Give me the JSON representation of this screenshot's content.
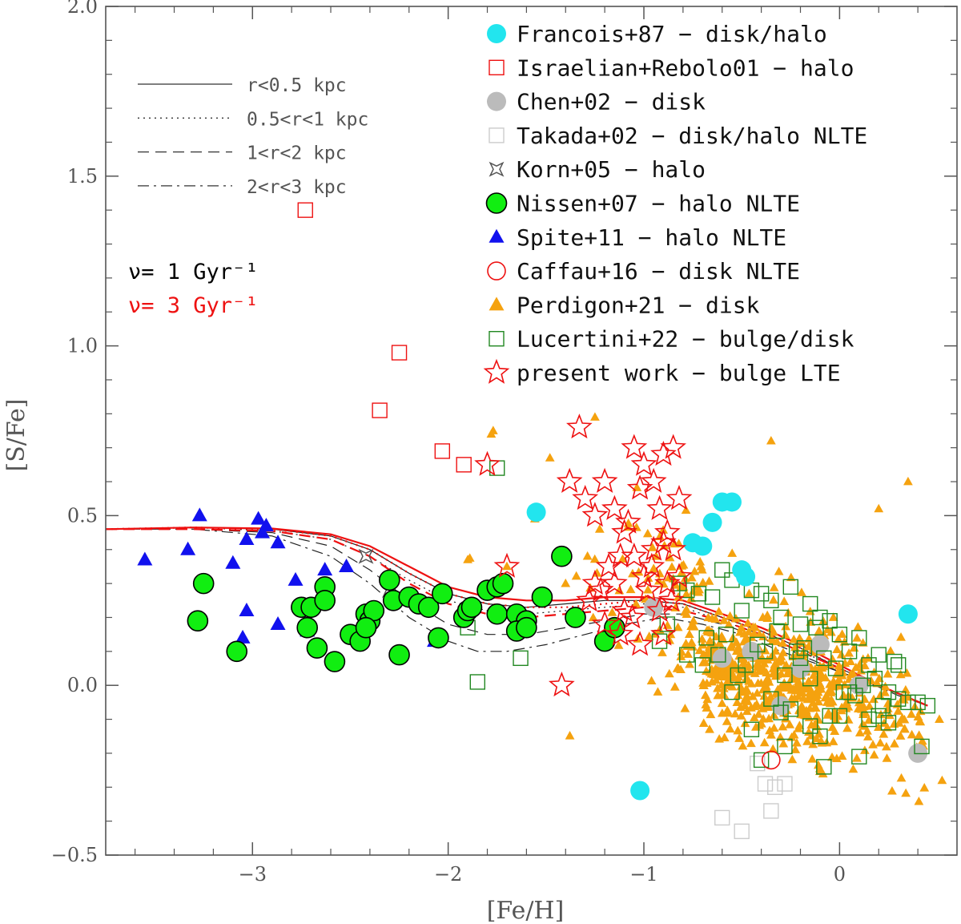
{
  "chart_data": {
    "type": "scatter",
    "title": "",
    "xlabel": "[Fe/H]",
    "ylabel": "[S/Fe]",
    "xlim": [
      -3.75,
      0.6
    ],
    "ylim": [
      -0.5,
      2.0
    ],
    "xticks": [
      -3,
      -2,
      -1,
      0
    ],
    "xtick_labels": [
      "−3",
      "−2",
      "−1",
      "0"
    ],
    "yticks": [
      -0.5,
      0.0,
      0.5,
      1.0,
      1.5,
      2.0
    ],
    "ytick_labels": [
      "−0.5",
      "0.0",
      "0.5",
      "1.0",
      "1.5",
      "2.0"
    ],
    "line_style_legend": [
      {
        "label": "r<0.5 kpc",
        "dash": "solid"
      },
      {
        "label": "0.5<r<1 kpc",
        "dash": "dotted"
      },
      {
        "label": "1<r<2 kpc",
        "dash": "dashed"
      },
      {
        "label": "2<r<3 kpc",
        "dash": "dashdot"
      }
    ],
    "nu_labels": [
      {
        "text": "ν= 1 Gyr⁻¹",
        "color": "#000000"
      },
      {
        "text": "ν= 3 Gyr⁻¹",
        "color": "#ee1111"
      }
    ],
    "legend_position": "top-right",
    "series": [
      {
        "name": "Francois+87 − disk/halo",
        "marker": "circle-filled",
        "color": "#22e5ee",
        "x": [
          -1.55,
          -0.65,
          -0.6,
          -0.55,
          -0.5,
          -0.48,
          -0.75,
          -0.7,
          0.35,
          -1.02
        ],
        "y": [
          0.51,
          0.48,
          0.54,
          0.54,
          0.34,
          0.32,
          0.42,
          0.41,
          0.21,
          -0.31
        ]
      },
      {
        "name": "Israelian+Rebolo01 − halo",
        "marker": "square-open",
        "color": "#ee1111",
        "x": [
          -2.73,
          -2.25,
          -2.35,
          -2.03,
          -1.92
        ],
        "y": [
          1.4,
          0.98,
          0.81,
          0.69,
          0.65
        ]
      },
      {
        "name": "Chen+02 − disk",
        "marker": "circle-filled",
        "color": "#bbbbbb",
        "x": [
          -0.95,
          -0.45,
          -0.3,
          -0.2,
          0.1,
          -0.1,
          0.4,
          -0.6
        ],
        "y": [
          0.23,
          0.1,
          -0.06,
          0.05,
          0.0,
          0.12,
          -0.2,
          0.08
        ]
      },
      {
        "name": "Takada+02 − disk/halo NLTE",
        "marker": "square-open",
        "color": "#cccccc",
        "x": [
          -0.6,
          -0.5,
          -0.35,
          -0.33,
          -0.38,
          -0.28,
          -0.42
        ],
        "y": [
          -0.39,
          -0.43,
          -0.37,
          -0.3,
          -0.29,
          -0.29,
          -0.23
        ]
      },
      {
        "name": "Korn+05 − halo",
        "marker": "star4",
        "color": "#555555",
        "x": [
          -2.42,
          -2.3
        ],
        "y": [
          0.38,
          0.28
        ]
      },
      {
        "name": "Nissen+07 − halo NLTE",
        "marker": "circle-filled-outlined",
        "color": "#11ee11",
        "x": [
          -3.25,
          -3.28,
          -3.08,
          -2.75,
          -2.72,
          -2.67,
          -2.7,
          -2.63,
          -2.63,
          -2.58,
          -2.5,
          -2.45,
          -2.42,
          -2.4,
          -2.38,
          -2.42,
          -2.3,
          -2.28,
          -2.25,
          -2.2,
          -2.15,
          -2.1,
          -2.05,
          -2.03,
          -1.92,
          -1.9,
          -1.88,
          -1.8,
          -1.75,
          -1.72,
          -1.75,
          -1.65,
          -1.6,
          -1.52,
          -1.65,
          -1.6,
          -1.42,
          -1.35,
          -1.2,
          -1.15
        ],
        "y": [
          0.3,
          0.19,
          0.1,
          0.23,
          0.17,
          0.11,
          0.23,
          0.29,
          0.25,
          0.07,
          0.15,
          0.13,
          0.21,
          0.19,
          0.22,
          0.17,
          0.31,
          0.25,
          0.09,
          0.26,
          0.24,
          0.23,
          0.14,
          0.27,
          0.2,
          0.22,
          0.23,
          0.28,
          0.29,
          0.3,
          0.21,
          0.21,
          0.19,
          0.26,
          0.16,
          0.17,
          0.38,
          0.2,
          0.13,
          0.17
        ]
      },
      {
        "name": "Spite+11 − halo NLTE",
        "marker": "triangle-filled",
        "color": "#1111ee",
        "x": [
          -3.55,
          -3.27,
          -3.33,
          -2.97,
          -2.93,
          -2.95,
          -3.03,
          -3.1,
          -2.87,
          -2.78,
          -2.63,
          -2.52,
          -3.03,
          -3.05,
          -2.87,
          -2.72,
          -2.07
        ],
        "y": [
          0.37,
          0.5,
          0.4,
          0.49,
          0.47,
          0.45,
          0.43,
          0.36,
          0.42,
          0.31,
          0.34,
          0.35,
          0.22,
          0.14,
          0.18,
          0.16,
          0.13
        ]
      },
      {
        "name": "Caffau+16 − disk NLTE",
        "marker": "circle-open",
        "color": "#ee1111",
        "x": [
          -0.35
        ],
        "y": [
          -0.22
        ]
      },
      {
        "name": "Perdigon+21 − disk",
        "marker": "triangle-filled",
        "color": "#f5a20f",
        "x": [],
        "y": []
      },
      {
        "name": "Lucertini+22 − bulge/disk",
        "marker": "square-open",
        "color": "#228822",
        "x": [
          -1.75,
          -1.85,
          -1.63,
          -1.9,
          -0.6,
          -0.82,
          -0.78,
          -0.72,
          -0.65,
          -0.55,
          -0.5,
          -0.45,
          -0.4,
          -0.35,
          -0.3,
          -0.25,
          -0.2,
          -0.15,
          -0.1,
          -0.05,
          0.0,
          0.05,
          0.1,
          0.15,
          0.2,
          0.25,
          0.3,
          0.35,
          0.4,
          0.45,
          -0.88,
          -0.92,
          -0.7,
          -0.62,
          -0.52,
          -0.42,
          -0.32,
          -0.22,
          -0.12,
          -0.02,
          0.08,
          0.18,
          0.28,
          -0.78,
          -0.68,
          -0.58,
          -0.48,
          -0.38,
          -0.28,
          -0.18,
          -0.08,
          0.02,
          0.12,
          0.22,
          -0.35,
          -0.25,
          -0.15,
          -0.05,
          0.05,
          0.15,
          0.25,
          -0.45,
          -0.55,
          -0.3,
          -0.2,
          -0.1,
          0.0,
          0.1,
          0.2,
          0.3,
          -0.4,
          -0.28,
          -0.15,
          0.42,
          -0.08
        ],
        "y": [
          0.64,
          0.01,
          0.08,
          0.17,
          0.34,
          0.3,
          0.28,
          0.27,
          0.26,
          0.31,
          0.22,
          0.28,
          0.27,
          0.25,
          0.2,
          0.29,
          0.18,
          0.24,
          0.2,
          0.19,
          0.15,
          0.1,
          0.14,
          0.06,
          0.09,
          -0.02,
          -0.04,
          -0.05,
          -0.05,
          -0.06,
          0.18,
          0.13,
          0.06,
          0.09,
          0.03,
          0.12,
          0.16,
          0.1,
          0.17,
          0.05,
          -0.03,
          0.02,
          0.07,
          0.09,
          0.14,
          0.15,
          0.06,
          0.1,
          0.03,
          0.11,
          0.08,
          -0.02,
          0.0,
          -0.06,
          -0.04,
          -0.07,
          -0.12,
          -0.09,
          -0.02,
          -0.1,
          -0.11,
          -0.13,
          -0.02,
          -0.08,
          0.08,
          -0.15,
          -0.09,
          -0.21,
          -0.09,
          0.06,
          -0.22,
          -0.18,
          0.02,
          -0.18,
          -0.24
        ]
      },
      {
        "name": "present work − bulge LTE",
        "marker": "star5-open",
        "color": "#ee1111",
        "x": [
          -1.33,
          -1.8,
          -1.7,
          -1.42,
          -1.38,
          -1.3,
          -1.25,
          -1.2,
          -1.15,
          -1.1,
          -1.05,
          -1.0,
          -0.95,
          -0.9,
          -0.85,
          -0.82,
          -1.02,
          -1.08,
          -0.92,
          -0.88,
          -1.12,
          -1.18,
          -1.25,
          -1.28,
          -1.22,
          -1.15,
          -1.1,
          -1.0,
          -0.95,
          -0.9,
          -1.05,
          -0.98,
          -0.92,
          -0.86,
          -1.2,
          -1.12,
          -1.06,
          -0.96,
          -0.88,
          -0.82,
          -1.02,
          -0.9,
          -0.85
        ],
        "y": [
          0.76,
          0.65,
          0.35,
          0.0,
          0.6,
          0.55,
          0.5,
          0.6,
          0.52,
          0.45,
          0.7,
          0.65,
          0.6,
          0.68,
          0.7,
          0.55,
          0.58,
          0.48,
          0.52,
          0.45,
          0.38,
          0.35,
          0.3,
          0.25,
          0.28,
          0.3,
          0.22,
          0.32,
          0.4,
          0.42,
          0.38,
          0.28,
          0.22,
          0.25,
          0.18,
          0.15,
          0.2,
          0.35,
          0.3,
          0.32,
          0.12,
          0.15,
          0.4
        ]
      }
    ],
    "model_tracks": [
      {
        "name": "r<0.5 kpc, nu=1",
        "color": "#222222",
        "dash": "solid",
        "x": [
          -3.75,
          -3.3,
          -2.9,
          -2.6,
          -2.4,
          -2.2,
          -2.0,
          -1.8,
          -1.6,
          -1.4,
          -1.2,
          -1.0,
          -0.8,
          -0.6,
          -0.4,
          -0.2,
          0.0,
          0.2,
          0.45
        ],
        "y": [
          0.46,
          0.465,
          0.46,
          0.44,
          0.4,
          0.33,
          0.27,
          0.24,
          0.23,
          0.24,
          0.25,
          0.25,
          0.24,
          0.2,
          0.16,
          0.11,
          0.05,
          0.0,
          -0.06
        ]
      },
      {
        "name": "0.5<r<1 kpc, nu=1",
        "color": "#222222",
        "dash": "dotted",
        "x": [
          -3.75,
          -3.3,
          -2.9,
          -2.6,
          -2.4,
          -2.2,
          -2.0,
          -1.8,
          -1.6,
          -1.4,
          -1.2,
          -1.0,
          -0.8,
          -0.6,
          -0.4,
          -0.2,
          0.0,
          0.2,
          0.45
        ],
        "y": [
          0.46,
          0.465,
          0.455,
          0.43,
          0.38,
          0.31,
          0.25,
          0.22,
          0.21,
          0.22,
          0.23,
          0.24,
          0.23,
          0.19,
          0.15,
          0.1,
          0.05,
          0.0,
          -0.06
        ]
      },
      {
        "name": "1<r<2 kpc, nu=1",
        "color": "#222222",
        "dash": "dashed",
        "x": [
          -3.75,
          -3.3,
          -2.9,
          -2.6,
          -2.4,
          -2.2,
          -2.0,
          -1.8,
          -1.6,
          -1.4,
          -1.2,
          -1.0,
          -0.8,
          -0.6,
          -0.4,
          -0.2,
          0.0,
          0.2,
          0.45
        ],
        "y": [
          0.46,
          0.46,
          0.45,
          0.41,
          0.34,
          0.25,
          0.18,
          0.15,
          0.15,
          0.17,
          0.19,
          0.21,
          0.21,
          0.18,
          0.14,
          0.09,
          0.04,
          0.0,
          -0.06
        ]
      },
      {
        "name": "2<r<3 kpc, nu=1",
        "color": "#222222",
        "dash": "dashdot",
        "x": [
          -3.75,
          -3.3,
          -2.9,
          -2.6,
          -2.4,
          -2.2,
          -2.0,
          -1.85,
          -1.7,
          -1.5,
          -1.3,
          -1.1,
          -0.9,
          -0.7,
          -0.5,
          -0.3,
          -0.1,
          0.1,
          0.3,
          0.45
        ],
        "y": [
          0.46,
          0.46,
          0.44,
          0.38,
          0.3,
          0.2,
          0.13,
          0.1,
          0.1,
          0.12,
          0.15,
          0.18,
          0.2,
          0.18,
          0.15,
          0.1,
          0.06,
          0.02,
          -0.03,
          -0.06
        ]
      },
      {
        "name": "r<0.5 kpc, nu=3",
        "color": "#ee1111",
        "dash": "solid",
        "x": [
          -3.75,
          -3.3,
          -2.9,
          -2.6,
          -2.4,
          -2.2,
          -2.0,
          -1.8,
          -1.6,
          -1.4,
          -1.2,
          -1.0,
          -0.8,
          -0.6,
          -0.4,
          -0.2,
          0.0,
          0.2,
          0.45
        ],
        "y": [
          0.46,
          0.465,
          0.462,
          0.445,
          0.41,
          0.35,
          0.29,
          0.26,
          0.25,
          0.25,
          0.26,
          0.26,
          0.25,
          0.21,
          0.17,
          0.12,
          0.06,
          0.0,
          -0.06
        ]
      },
      {
        "name": "0.5<r<1 kpc, nu=3",
        "color": "#ee1111",
        "dash": "dotted",
        "x": [
          -3.75,
          -3.3,
          -2.9,
          -2.6,
          -2.4,
          -2.2,
          -2.0,
          -1.8,
          -1.6,
          -1.4,
          -1.2,
          -1.0,
          -0.8,
          -0.6,
          -0.4,
          -0.2,
          0.0,
          0.2,
          0.45
        ],
        "y": [
          0.46,
          0.465,
          0.46,
          0.44,
          0.4,
          0.33,
          0.27,
          0.24,
          0.23,
          0.23,
          0.24,
          0.25,
          0.24,
          0.2,
          0.16,
          0.11,
          0.05,
          0.0,
          -0.06
        ]
      },
      {
        "name": "1<r<2 kpc, nu=3",
        "color": "#ee1111",
        "dash": "dashed",
        "x": [
          -3.75,
          -3.3,
          -2.9,
          -2.6,
          -2.4,
          -2.2,
          -2.0,
          -1.8,
          -1.6,
          -1.4,
          -1.2,
          -1.0,
          -0.8,
          -0.6,
          -0.4,
          -0.2,
          0.0,
          0.2,
          0.45
        ],
        "y": [
          0.46,
          0.46,
          0.455,
          0.43,
          0.38,
          0.3,
          0.24,
          0.21,
          0.2,
          0.21,
          0.22,
          0.23,
          0.22,
          0.19,
          0.15,
          0.1,
          0.05,
          0.0,
          -0.06
        ]
      }
    ],
    "perdigon_cloud": {
      "seed": 7,
      "count": 700,
      "x_range": [
        -1.9,
        0.55
      ],
      "note": "dense disk triangles centered on trend y = -0.16*x - 0.03"
    }
  }
}
